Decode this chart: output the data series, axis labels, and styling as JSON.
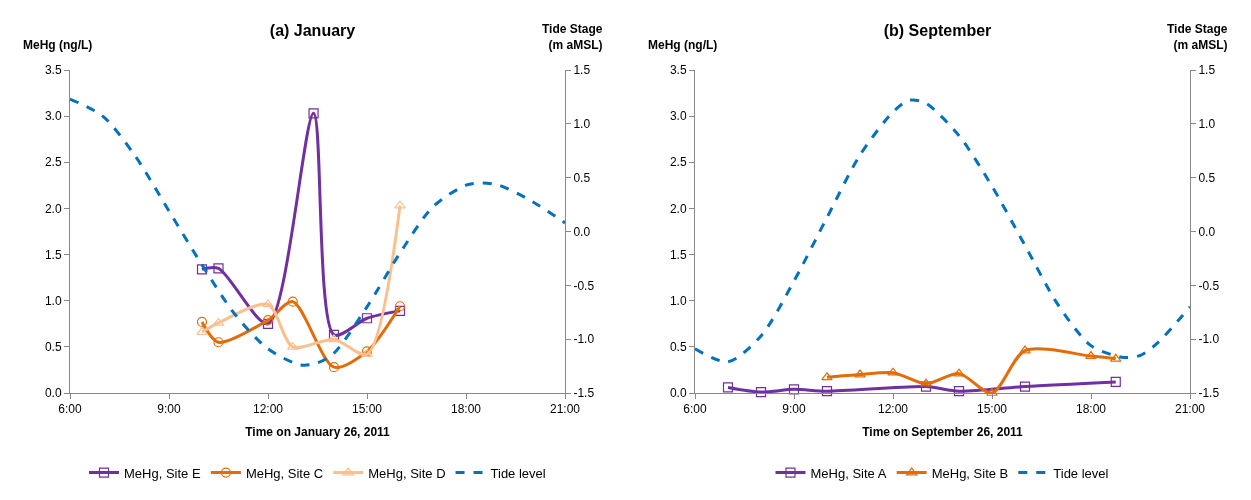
{
  "chart_data": [
    {
      "type": "line",
      "title": "(a) January",
      "xlabel": "Time on January 26, 2011",
      "ylabel": "MeHg (ng/L)",
      "y2label": "Tide Stage\n(m aMSL)",
      "grid": false,
      "legend": "bottom",
      "xlim": [
        6,
        21
      ],
      "xticks": [
        {
          "value": 6,
          "label": "6:00"
        },
        {
          "value": 9,
          "label": "9:00"
        },
        {
          "value": 12,
          "label": "12:00"
        },
        {
          "value": 15,
          "label": "15:00"
        },
        {
          "value": 18,
          "label": "18:00"
        },
        {
          "value": 21,
          "label": "21:00"
        }
      ],
      "ylim": [
        0,
        3.5
      ],
      "yticks": [
        {
          "value": 0,
          "label": "0.0"
        },
        {
          "value": 0.5,
          "label": "0.5"
        },
        {
          "value": 1,
          "label": "1.0"
        },
        {
          "value": 1.5,
          "label": "1.5"
        },
        {
          "value": 2,
          "label": "2.0"
        },
        {
          "value": 2.5,
          "label": "2.5"
        },
        {
          "value": 3,
          "label": "3.0"
        },
        {
          "value": 3.5,
          "label": "3.5"
        }
      ],
      "y2lim": [
        -1.5,
        1.5
      ],
      "y2ticks": [
        {
          "value": -1.5,
          "label": "-1.5"
        },
        {
          "value": -1,
          "label": "-1.0"
        },
        {
          "value": -0.5,
          "label": "-0.5"
        },
        {
          "value": 0,
          "label": "0.0"
        },
        {
          "value": 0.5,
          "label": "0.5"
        },
        {
          "value": 1,
          "label": "1.0"
        },
        {
          "value": 1.5,
          "label": "1.5"
        }
      ],
      "series": [
        {
          "name": "MeHg, Site E",
          "color": "#7030a0",
          "marker": "square",
          "line_style": "solid",
          "x": [
            10,
            10.5,
            12,
            13.38,
            14,
            15,
            16
          ],
          "values": [
            1.34,
            1.35,
            0.75,
            3.03,
            0.63,
            0.81,
            0.89
          ]
        },
        {
          "name": "MeHg, Site C",
          "color": "#e36c09",
          "marker": "circle",
          "line_style": "solid",
          "x": [
            10,
            10.5,
            12,
            12.75,
            14,
            15,
            16
          ],
          "values": [
            0.77,
            0.55,
            0.79,
            0.99,
            0.28,
            0.45,
            0.94
          ]
        },
        {
          "name": "MeHg, Site D",
          "color": "#fac090",
          "marker": "triangle",
          "line_style": "solid",
          "x": [
            10,
            10.5,
            12,
            12.75,
            14,
            15,
            16
          ],
          "values": [
            0.66,
            0.76,
            0.96,
            0.5,
            0.58,
            0.42,
            2.03
          ]
        },
        {
          "name": "Tide level",
          "color": "#0070c0",
          "marker": "none",
          "line_style": "dashed",
          "axis": "y2",
          "x": [
            6,
            7,
            8,
            9,
            10,
            11,
            12,
            13,
            13.5,
            14,
            15,
            16,
            17,
            18,
            18.5,
            19,
            20,
            21
          ],
          "values": [
            1.23,
            1.07,
            0.69,
            0.19,
            -0.31,
            -0.77,
            -1.09,
            -1.24,
            -1.22,
            -1.13,
            -0.7,
            -0.2,
            0.23,
            0.43,
            0.45,
            0.43,
            0.28,
            0.08
          ]
        }
      ]
    },
    {
      "type": "line",
      "title": "(b) September",
      "xlabel": "Time on September 26, 2011",
      "ylabel": "MeHg (ng/L)",
      "y2label": "Tide Stage\n(m aMSL)",
      "grid": false,
      "legend": "bottom",
      "xlim": [
        6,
        21
      ],
      "xticks": [
        {
          "value": 6,
          "label": "6:00"
        },
        {
          "value": 9,
          "label": "9:00"
        },
        {
          "value": 12,
          "label": "12:00"
        },
        {
          "value": 15,
          "label": "15:00"
        },
        {
          "value": 18,
          "label": "18:00"
        },
        {
          "value": 21,
          "label": "21:00"
        }
      ],
      "ylim": [
        0,
        3.5
      ],
      "yticks": [
        {
          "value": 0,
          "label": "0.0"
        },
        {
          "value": 0.5,
          "label": "0.5"
        },
        {
          "value": 1,
          "label": "1.0"
        },
        {
          "value": 1.5,
          "label": "1.5"
        },
        {
          "value": 2,
          "label": "2.0"
        },
        {
          "value": 2.5,
          "label": "2.5"
        },
        {
          "value": 3,
          "label": "3.0"
        },
        {
          "value": 3.5,
          "label": "3.5"
        }
      ],
      "y2lim": [
        -1.5,
        1.5
      ],
      "y2ticks": [
        {
          "value": -1.5,
          "label": "-1.5"
        },
        {
          "value": -1,
          "label": "-1.0"
        },
        {
          "value": -0.5,
          "label": "-0.5"
        },
        {
          "value": 0,
          "label": "0.0"
        },
        {
          "value": 0.5,
          "label": "0.5"
        },
        {
          "value": 1,
          "label": "1.0"
        },
        {
          "value": 1.5,
          "label": "1.5"
        }
      ],
      "series": [
        {
          "name": "MeHg, Site A",
          "color": "#7030a0",
          "marker": "square",
          "line_style": "solid",
          "x": [
            7,
            8,
            9,
            10,
            13,
            14,
            16,
            18.75
          ],
          "values": [
            0.06,
            0.01,
            0.04,
            0.02,
            0.07,
            0.02,
            0.07,
            0.12
          ]
        },
        {
          "name": "MeHg, Site B",
          "color": "#e36c09",
          "marker": "triangle",
          "line_style": "solid",
          "x": [
            10,
            11,
            12,
            13,
            14,
            15,
            16,
            18,
            18.75
          ],
          "values": [
            0.17,
            0.2,
            0.22,
            0.1,
            0.21,
            0.0,
            0.46,
            0.4,
            0.37
          ]
        },
        {
          "name": "Tide level",
          "color": "#0070c0",
          "marker": "none",
          "line_style": "dashed",
          "axis": "y2",
          "x": [
            6,
            7,
            8,
            9,
            10,
            11,
            12,
            12.5,
            13,
            14,
            15,
            16,
            17,
            18,
            19,
            19.5,
            20,
            21
          ],
          "values": [
            -1.09,
            -1.21,
            -0.97,
            -0.46,
            0.13,
            0.71,
            1.11,
            1.22,
            1.19,
            0.89,
            0.42,
            -0.13,
            -0.68,
            -1.06,
            -1.17,
            -1.15,
            -1.04,
            -0.7
          ]
        }
      ]
    }
  ]
}
